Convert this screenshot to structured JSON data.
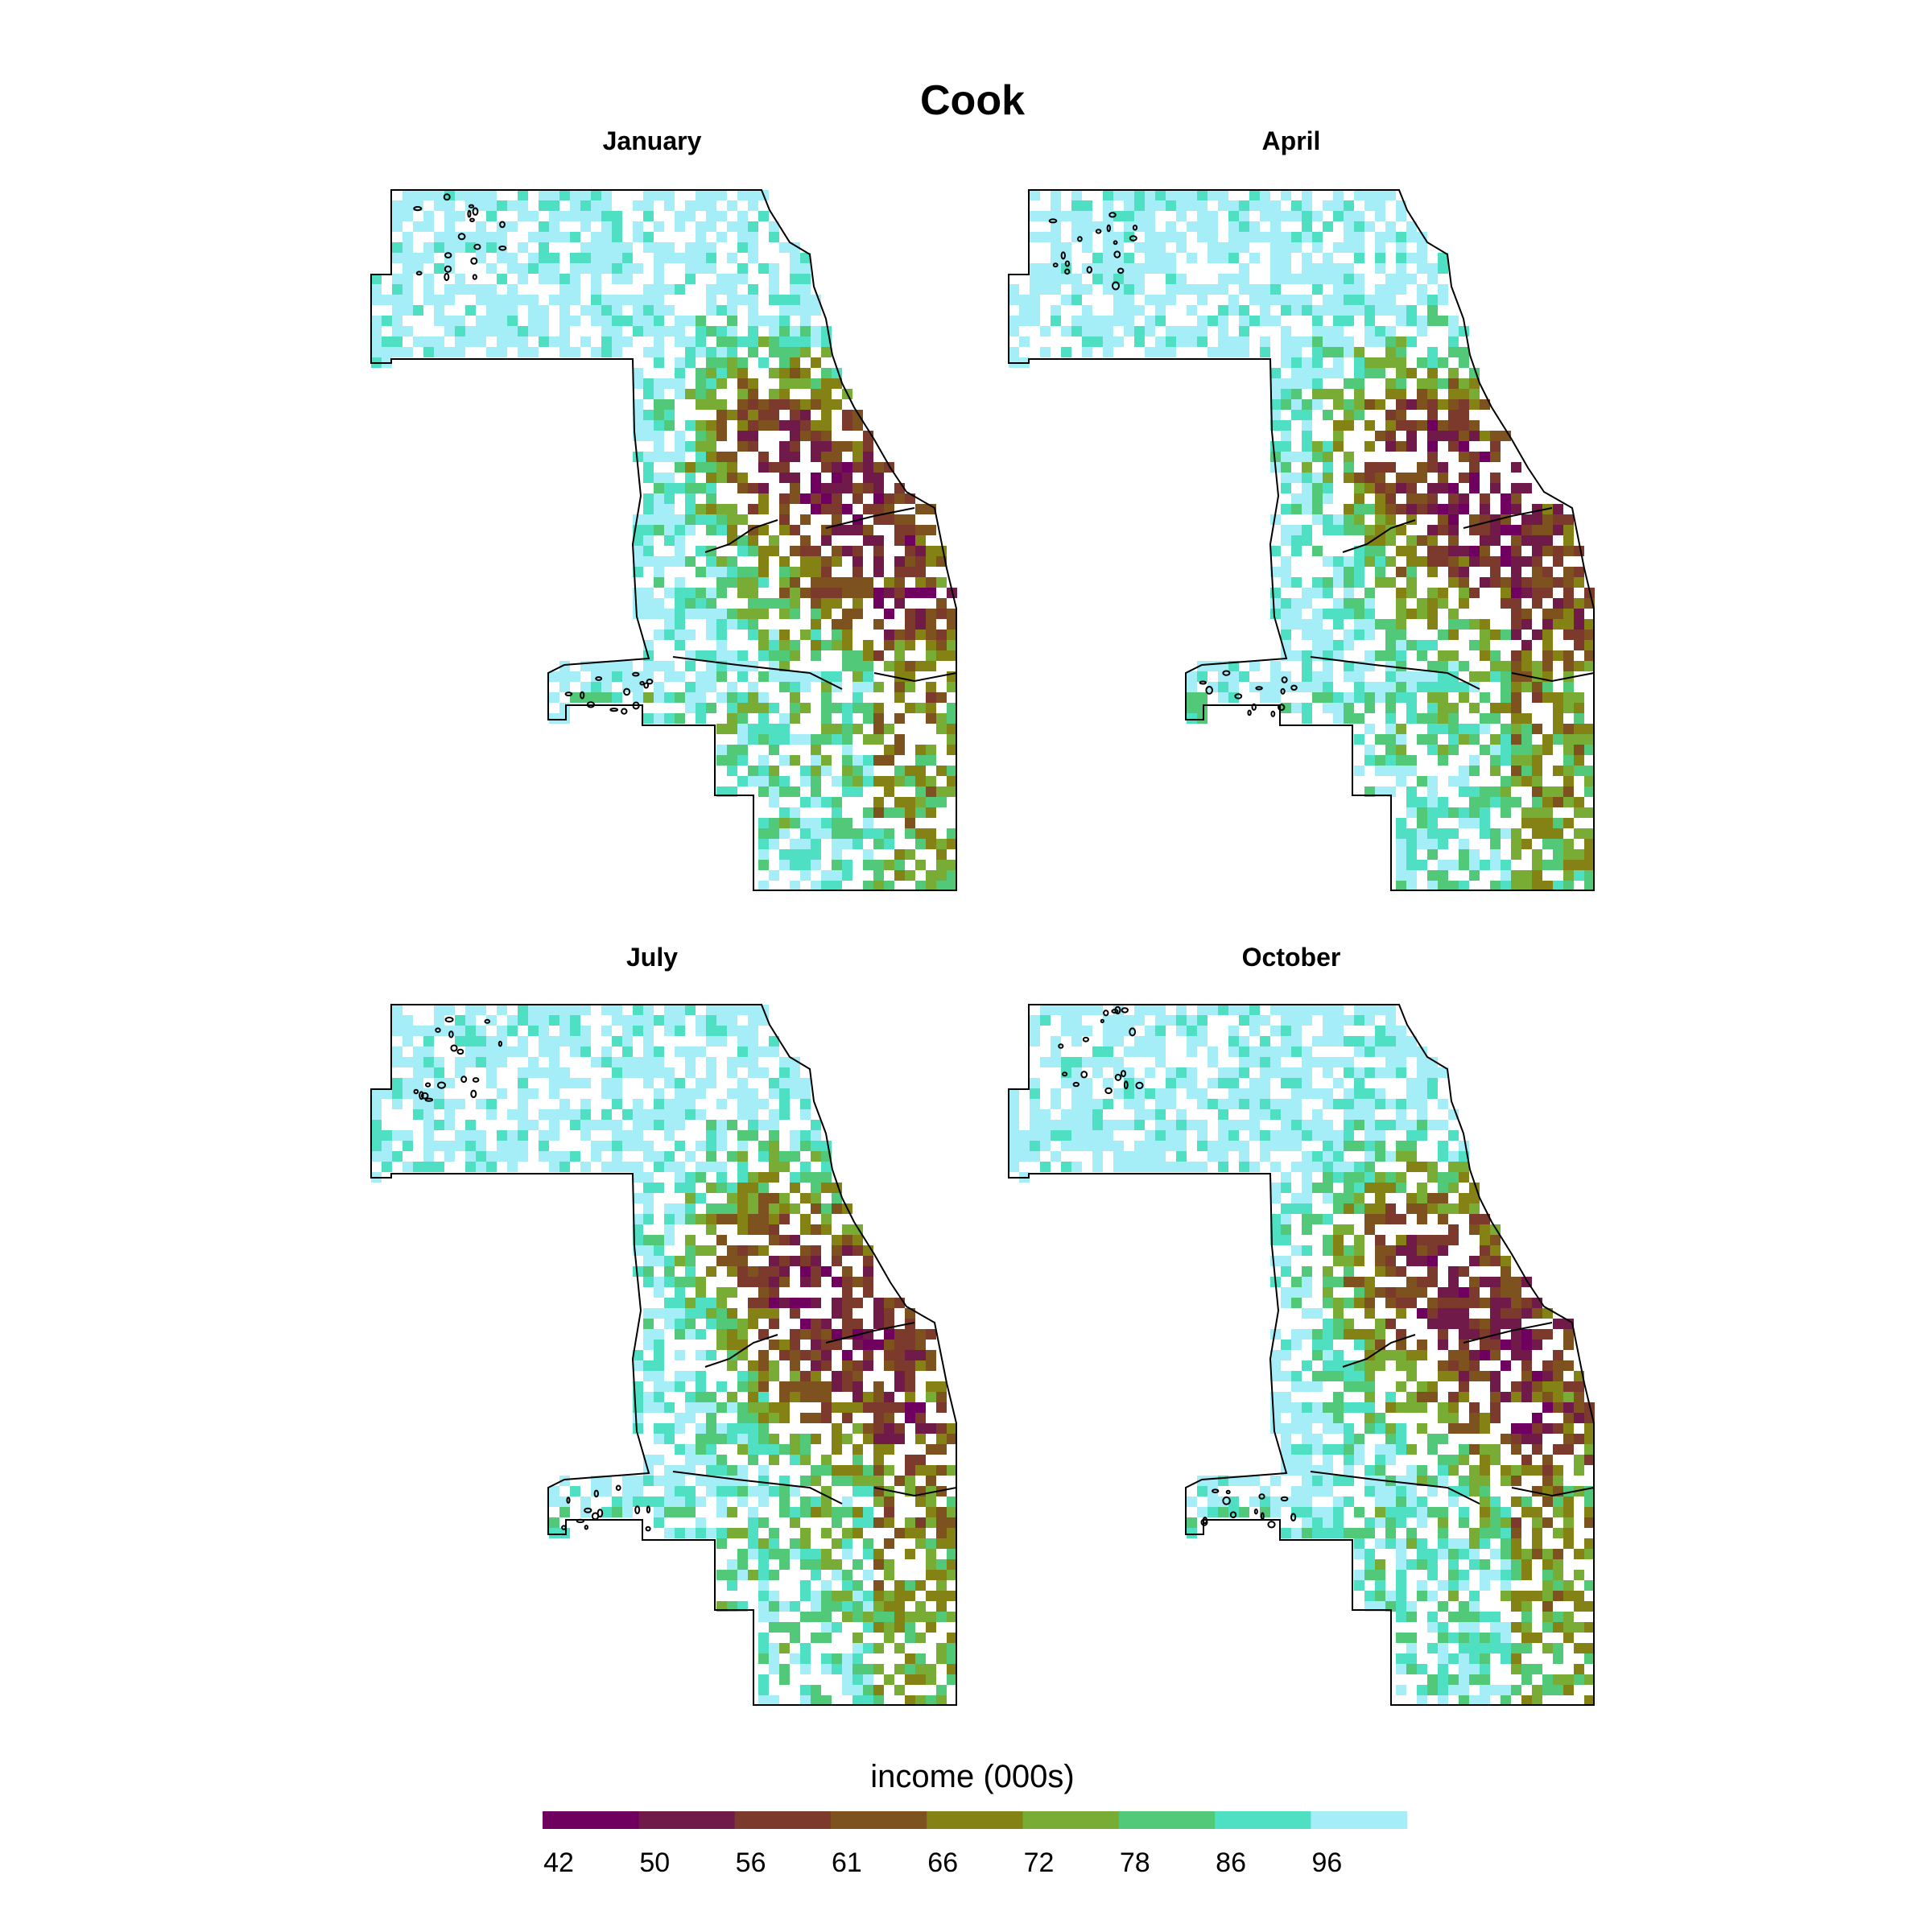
{
  "title": "Cook",
  "legend": {
    "title": "income (000s)",
    "breaks": [
      "42",
      "50",
      "56",
      "61",
      "66",
      "72",
      "78",
      "86",
      "96"
    ],
    "colors": [
      "#6f0060",
      "#6f1a48",
      "#7b3a2c",
      "#7d521f",
      "#848214",
      "#79ac35",
      "#52c978",
      "#4fe0c3",
      "#a6eef7"
    ]
  },
  "panels": [
    {
      "title": "January",
      "seed": 11
    },
    {
      "title": "April",
      "seed": 23
    },
    {
      "title": "July",
      "seed": 37
    },
    {
      "title": "October",
      "seed": 41
    }
  ]
}
